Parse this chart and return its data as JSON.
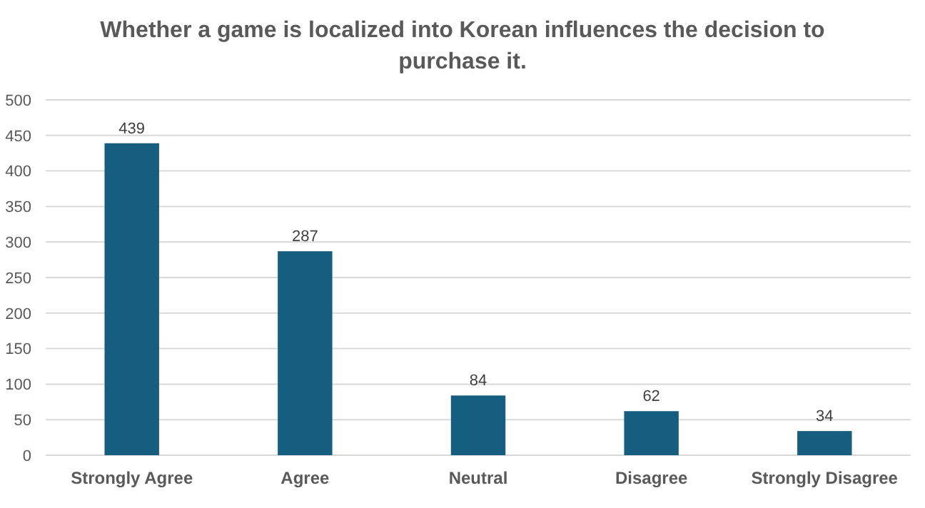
{
  "chart_data": {
    "type": "bar",
    "title": "Whether a game is localized into Korean influences the decision to purchase it.",
    "categories": [
      "Strongly Agree",
      "Agree",
      "Neutral",
      "Disagree",
      "Strongly Disagree"
    ],
    "values": [
      439,
      287,
      84,
      62,
      34
    ],
    "color": "#165e80",
    "ylim": [
      0,
      500
    ],
    "yticks": [
      0,
      50,
      100,
      150,
      200,
      250,
      300,
      350,
      400,
      450,
      500
    ],
    "grid": "y",
    "data_labels": true
  }
}
